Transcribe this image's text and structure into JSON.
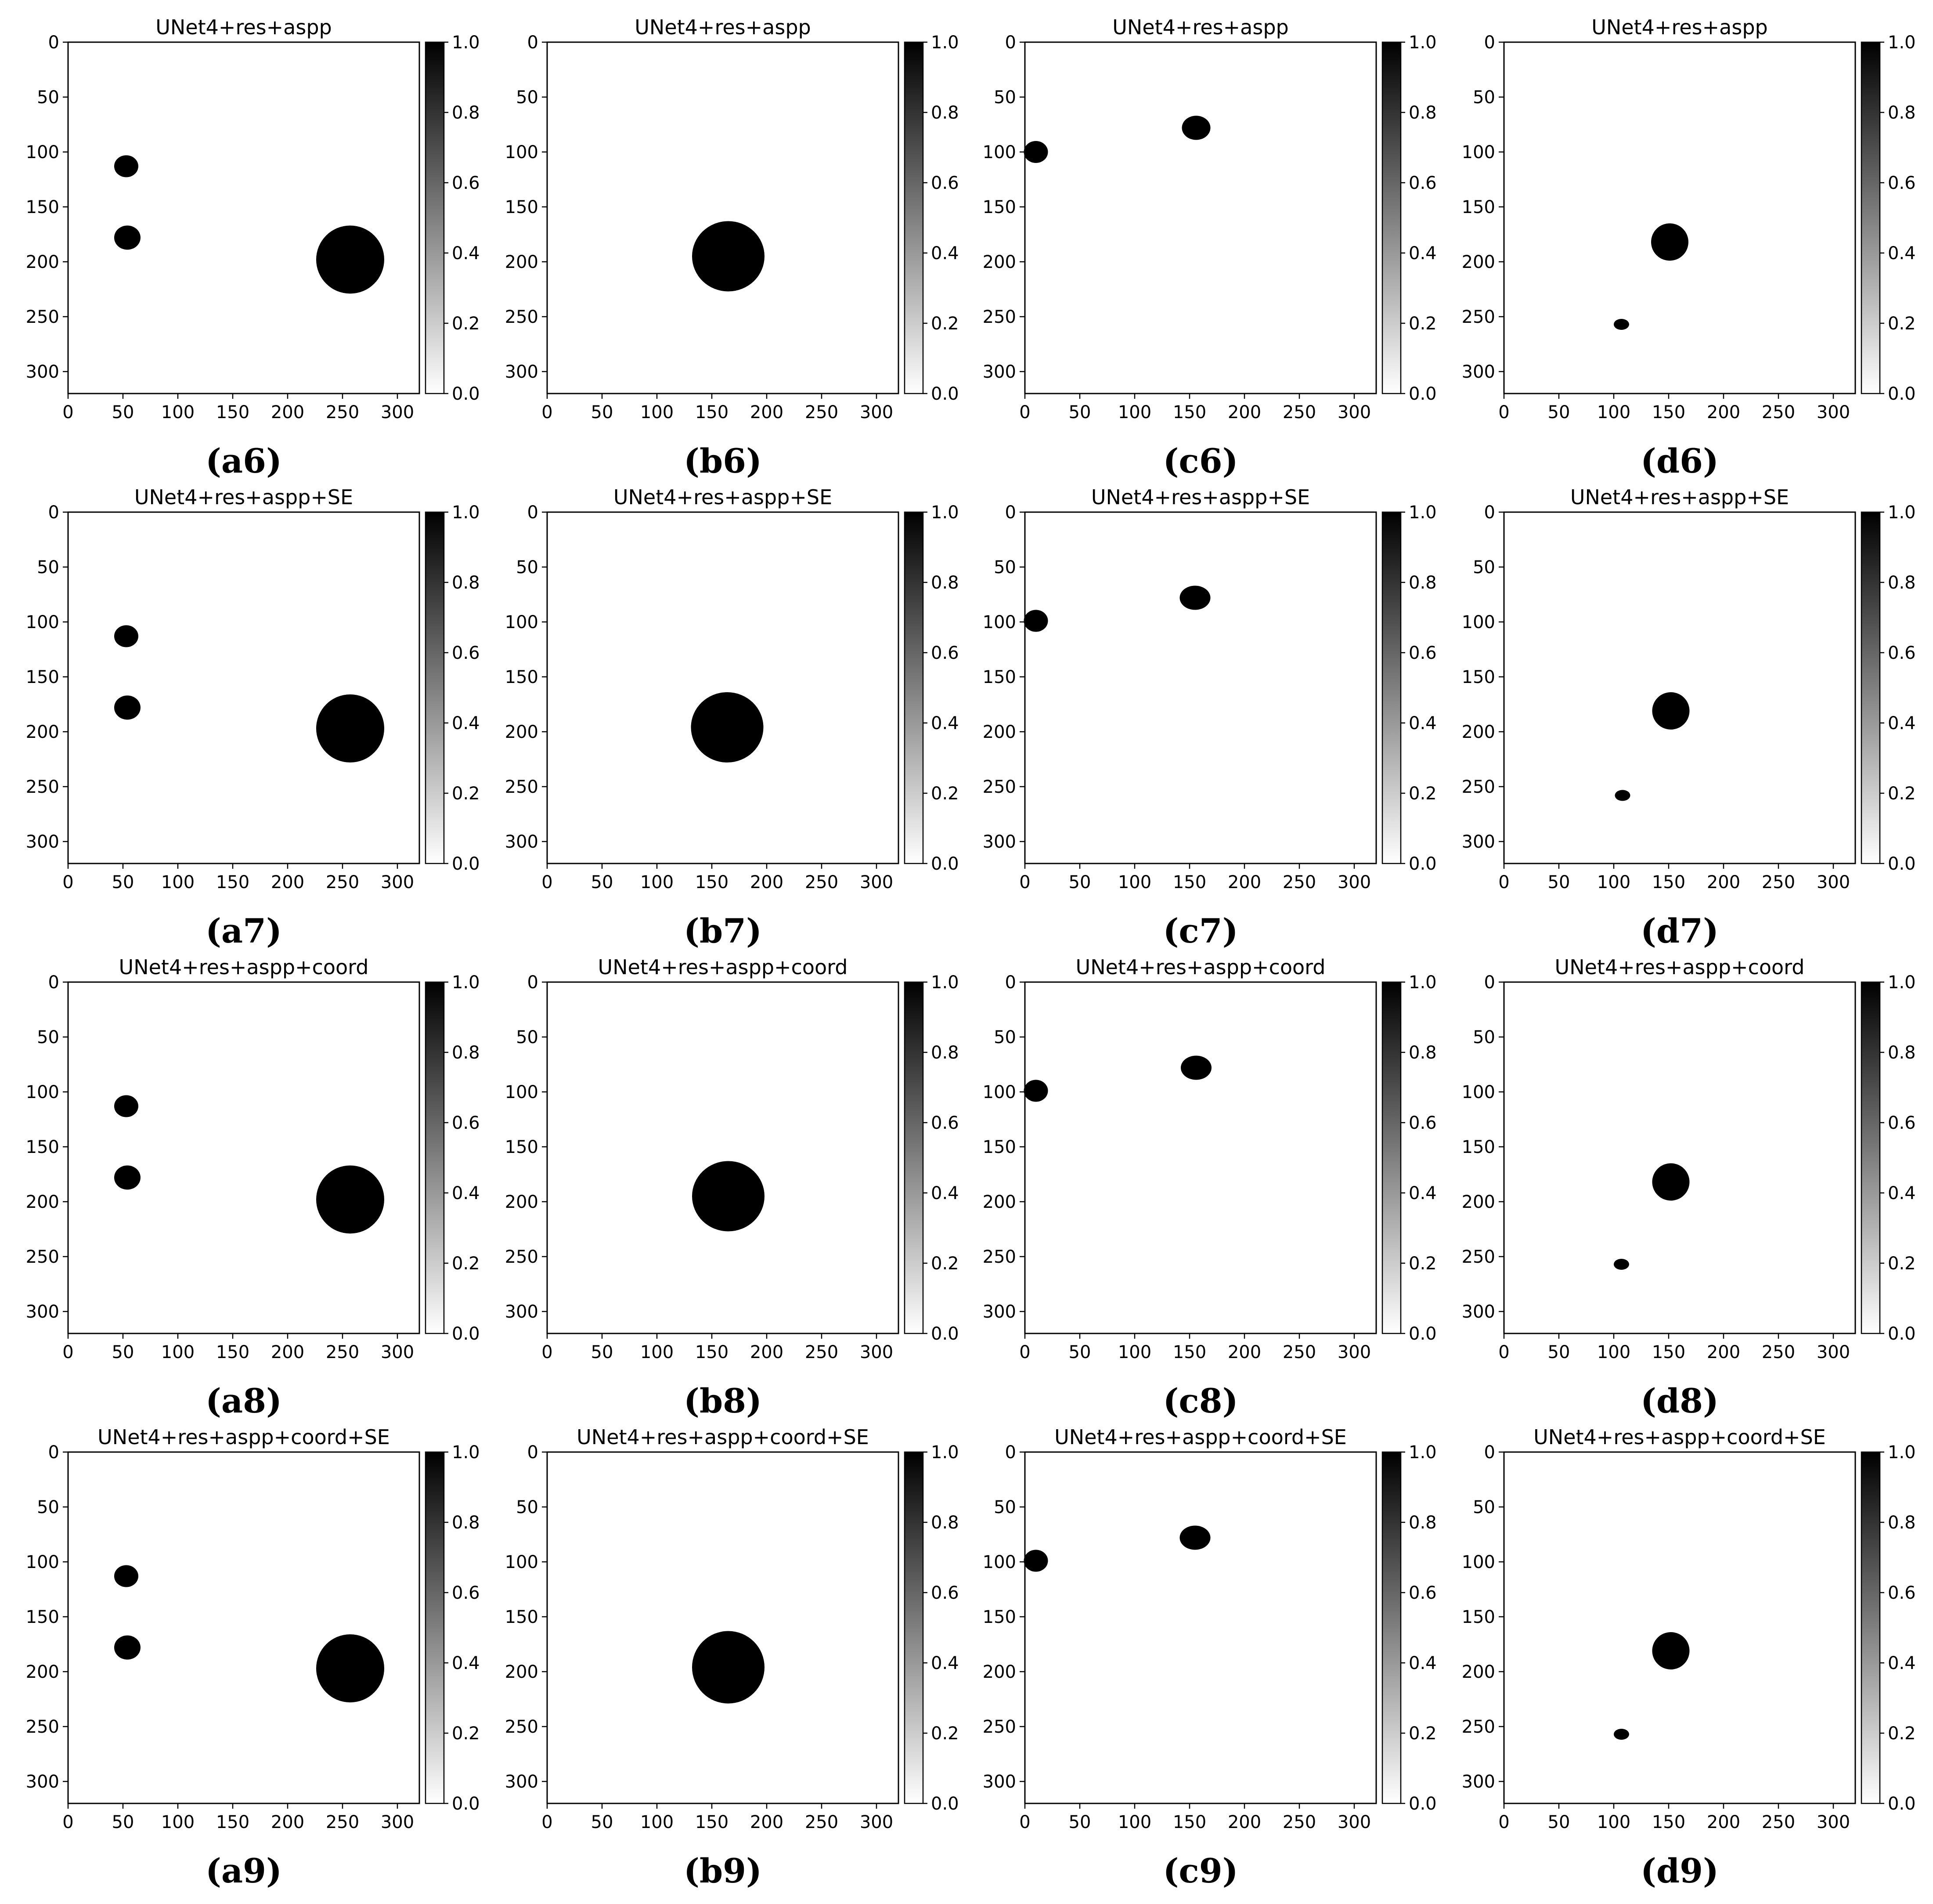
{
  "chart_data": [
    {
      "id": "a6",
      "type": "heatmap",
      "title": "UNet4+res+aspp",
      "label": "(a6)",
      "x_ticks": [
        0,
        50,
        100,
        150,
        200,
        250,
        300
      ],
      "y_ticks": [
        0,
        50,
        100,
        150,
        200,
        250,
        300
      ],
      "xlim": [
        0,
        320
      ],
      "ylim": [
        320,
        0
      ],
      "colorbar": {
        "ticks": [
          "0.0",
          "0.2",
          "0.4",
          "0.6",
          "0.8",
          "1.0"
        ],
        "range": [
          0,
          1
        ],
        "colormap": "gray_r"
      },
      "regions": [
        {
          "cx": 53,
          "cy": 113,
          "rx": 11,
          "ry": 10
        },
        {
          "cx": 54,
          "cy": 178,
          "rx": 12,
          "ry": 11
        },
        {
          "cx": 257,
          "cy": 198,
          "rx": 31,
          "ry": 31
        }
      ]
    },
    {
      "id": "b6",
      "type": "heatmap",
      "title": "UNet4+res+aspp",
      "label": "(b6)",
      "x_ticks": [
        0,
        50,
        100,
        150,
        200,
        250,
        300
      ],
      "y_ticks": [
        0,
        50,
        100,
        150,
        200,
        250,
        300
      ],
      "xlim": [
        0,
        320
      ],
      "ylim": [
        320,
        0
      ],
      "colorbar": {
        "ticks": [
          "0.0",
          "0.2",
          "0.4",
          "0.6",
          "0.8",
          "1.0"
        ],
        "range": [
          0,
          1
        ],
        "colormap": "gray_r"
      },
      "regions": [
        {
          "cx": 165,
          "cy": 195,
          "rx": 33,
          "ry": 32
        }
      ]
    },
    {
      "id": "c6",
      "type": "heatmap",
      "title": "UNet4+res+aspp",
      "label": "(c6)",
      "x_ticks": [
        0,
        50,
        100,
        150,
        200,
        250,
        300
      ],
      "y_ticks": [
        0,
        50,
        100,
        150,
        200,
        250,
        300
      ],
      "xlim": [
        0,
        320
      ],
      "ylim": [
        320,
        0
      ],
      "colorbar": {
        "ticks": [
          "0.0",
          "0.2",
          "0.4",
          "0.6",
          "0.8",
          "1.0"
        ],
        "range": [
          0,
          1
        ],
        "colormap": "gray_r"
      },
      "regions": [
        {
          "cx": 10,
          "cy": 100,
          "rx": 11,
          "ry": 10
        },
        {
          "cx": 156,
          "cy": 78,
          "rx": 13,
          "ry": 11
        }
      ]
    },
    {
      "id": "d6",
      "type": "heatmap",
      "title": "UNet4+res+aspp",
      "label": "(d6)",
      "x_ticks": [
        0,
        50,
        100,
        150,
        200,
        250,
        300
      ],
      "y_ticks": [
        0,
        50,
        100,
        150,
        200,
        250,
        300
      ],
      "xlim": [
        0,
        320
      ],
      "ylim": [
        320,
        0
      ],
      "colorbar": {
        "ticks": [
          "0.0",
          "0.2",
          "0.4",
          "0.6",
          "0.8",
          "1.0"
        ],
        "range": [
          0,
          1
        ],
        "colormap": "gray_r"
      },
      "regions": [
        {
          "cx": 151,
          "cy": 182,
          "rx": 17,
          "ry": 17
        },
        {
          "cx": 107,
          "cy": 257,
          "rx": 7,
          "ry": 5
        }
      ]
    },
    {
      "id": "a7",
      "type": "heatmap",
      "title": "UNet4+res+aspp+SE",
      "label": "(a7)",
      "x_ticks": [
        0,
        50,
        100,
        150,
        200,
        250,
        300
      ],
      "y_ticks": [
        0,
        50,
        100,
        150,
        200,
        250,
        300
      ],
      "xlim": [
        0,
        320
      ],
      "ylim": [
        320,
        0
      ],
      "colorbar": {
        "ticks": [
          "0.0",
          "0.2",
          "0.4",
          "0.6",
          "0.8",
          "1.0"
        ],
        "range": [
          0,
          1
        ],
        "colormap": "gray_r"
      },
      "regions": [
        {
          "cx": 53,
          "cy": 113,
          "rx": 11,
          "ry": 10
        },
        {
          "cx": 54,
          "cy": 178,
          "rx": 12,
          "ry": 11
        },
        {
          "cx": 257,
          "cy": 197,
          "rx": 31,
          "ry": 31
        }
      ]
    },
    {
      "id": "b7",
      "type": "heatmap",
      "title": "UNet4+res+aspp+SE",
      "label": "(b7)",
      "x_ticks": [
        0,
        50,
        100,
        150,
        200,
        250,
        300
      ],
      "y_ticks": [
        0,
        50,
        100,
        150,
        200,
        250,
        300
      ],
      "xlim": [
        0,
        320
      ],
      "ylim": [
        320,
        0
      ],
      "colorbar": {
        "ticks": [
          "0.0",
          "0.2",
          "0.4",
          "0.6",
          "0.8",
          "1.0"
        ],
        "range": [
          0,
          1
        ],
        "colormap": "gray_r"
      },
      "regions": [
        {
          "cx": 164,
          "cy": 196,
          "rx": 33,
          "ry": 32
        }
      ]
    },
    {
      "id": "c7",
      "type": "heatmap",
      "title": "UNet4+res+aspp+SE",
      "label": "(c7)",
      "x_ticks": [
        0,
        50,
        100,
        150,
        200,
        250,
        300
      ],
      "y_ticks": [
        0,
        50,
        100,
        150,
        200,
        250,
        300
      ],
      "xlim": [
        0,
        320
      ],
      "ylim": [
        320,
        0
      ],
      "colorbar": {
        "ticks": [
          "0.0",
          "0.2",
          "0.4",
          "0.6",
          "0.8",
          "1.0"
        ],
        "range": [
          0,
          1
        ],
        "colormap": "gray_r"
      },
      "regions": [
        {
          "cx": 10,
          "cy": 99,
          "rx": 11,
          "ry": 10
        },
        {
          "cx": 155,
          "cy": 78,
          "rx": 14,
          "ry": 11
        }
      ]
    },
    {
      "id": "d7",
      "type": "heatmap",
      "title": "UNet4+res+aspp+SE",
      "label": "(d7)",
      "x_ticks": [
        0,
        50,
        100,
        150,
        200,
        250,
        300
      ],
      "y_ticks": [
        0,
        50,
        100,
        150,
        200,
        250,
        300
      ],
      "xlim": [
        0,
        320
      ],
      "ylim": [
        320,
        0
      ],
      "colorbar": {
        "ticks": [
          "0.0",
          "0.2",
          "0.4",
          "0.6",
          "0.8",
          "1.0"
        ],
        "range": [
          0,
          1
        ],
        "colormap": "gray_r"
      },
      "regions": [
        {
          "cx": 152,
          "cy": 181,
          "rx": 17,
          "ry": 17
        },
        {
          "cx": 108,
          "cy": 258,
          "rx": 7,
          "ry": 5
        }
      ]
    },
    {
      "id": "a8",
      "type": "heatmap",
      "title": "UNet4+res+aspp+coord",
      "label": "(a8)",
      "x_ticks": [
        0,
        50,
        100,
        150,
        200,
        250,
        300
      ],
      "y_ticks": [
        0,
        50,
        100,
        150,
        200,
        250,
        300
      ],
      "xlim": [
        0,
        320
      ],
      "ylim": [
        320,
        0
      ],
      "colorbar": {
        "ticks": [
          "0.0",
          "0.2",
          "0.4",
          "0.6",
          "0.8",
          "1.0"
        ],
        "range": [
          0,
          1
        ],
        "colormap": "gray_r"
      },
      "regions": [
        {
          "cx": 53,
          "cy": 113,
          "rx": 11,
          "ry": 10
        },
        {
          "cx": 54,
          "cy": 178,
          "rx": 12,
          "ry": 11
        },
        {
          "cx": 257,
          "cy": 198,
          "rx": 31,
          "ry": 31
        }
      ]
    },
    {
      "id": "b8",
      "type": "heatmap",
      "title": "UNet4+res+aspp+coord",
      "label": "(b8)",
      "x_ticks": [
        0,
        50,
        100,
        150,
        200,
        250,
        300
      ],
      "y_ticks": [
        0,
        50,
        100,
        150,
        200,
        250,
        300
      ],
      "xlim": [
        0,
        320
      ],
      "ylim": [
        320,
        0
      ],
      "colorbar": {
        "ticks": [
          "0.0",
          "0.2",
          "0.4",
          "0.6",
          "0.8",
          "1.0"
        ],
        "range": [
          0,
          1
        ],
        "colormap": "gray_r"
      },
      "regions": [
        {
          "cx": 165,
          "cy": 195,
          "rx": 33,
          "ry": 32
        }
      ]
    },
    {
      "id": "c8",
      "type": "heatmap",
      "title": "UNet4+res+aspp+coord",
      "label": "(c8)",
      "x_ticks": [
        0,
        50,
        100,
        150,
        200,
        250,
        300
      ],
      "y_ticks": [
        0,
        50,
        100,
        150,
        200,
        250,
        300
      ],
      "xlim": [
        0,
        320
      ],
      "ylim": [
        320,
        0
      ],
      "colorbar": {
        "ticks": [
          "0.0",
          "0.2",
          "0.4",
          "0.6",
          "0.8",
          "1.0"
        ],
        "range": [
          0,
          1
        ],
        "colormap": "gray_r"
      },
      "regions": [
        {
          "cx": 10,
          "cy": 99,
          "rx": 11,
          "ry": 10
        },
        {
          "cx": 156,
          "cy": 78,
          "rx": 14,
          "ry": 11
        }
      ]
    },
    {
      "id": "d8",
      "type": "heatmap",
      "title": "UNet4+res+aspp+coord",
      "label": "(d8)",
      "x_ticks": [
        0,
        50,
        100,
        150,
        200,
        250,
        300
      ],
      "y_ticks": [
        0,
        50,
        100,
        150,
        200,
        250,
        300
      ],
      "xlim": [
        0,
        320
      ],
      "ylim": [
        320,
        0
      ],
      "colorbar": {
        "ticks": [
          "0.0",
          "0.2",
          "0.4",
          "0.6",
          "0.8",
          "1.0"
        ],
        "range": [
          0,
          1
        ],
        "colormap": "gray_r"
      },
      "regions": [
        {
          "cx": 152,
          "cy": 182,
          "rx": 17,
          "ry": 17
        },
        {
          "cx": 107,
          "cy": 257,
          "rx": 7,
          "ry": 5
        }
      ]
    },
    {
      "id": "a9",
      "type": "heatmap",
      "title": "UNet4+res+aspp+coord+SE",
      "label": "(a9)",
      "x_ticks": [
        0,
        50,
        100,
        150,
        200,
        250,
        300
      ],
      "y_ticks": [
        0,
        50,
        100,
        150,
        200,
        250,
        300
      ],
      "xlim": [
        0,
        320
      ],
      "ylim": [
        320,
        0
      ],
      "colorbar": {
        "ticks": [
          "0.0",
          "0.2",
          "0.4",
          "0.6",
          "0.8",
          "1.0"
        ],
        "range": [
          0,
          1
        ],
        "colormap": "gray_r"
      },
      "regions": [
        {
          "cx": 53,
          "cy": 113,
          "rx": 11,
          "ry": 10
        },
        {
          "cx": 54,
          "cy": 178,
          "rx": 12,
          "ry": 11
        },
        {
          "cx": 257,
          "cy": 197,
          "rx": 31,
          "ry": 31
        }
      ]
    },
    {
      "id": "b9",
      "type": "heatmap",
      "title": "UNet4+res+aspp+coord+SE",
      "label": "(b9)",
      "x_ticks": [
        0,
        50,
        100,
        150,
        200,
        250,
        300
      ],
      "y_ticks": [
        0,
        50,
        100,
        150,
        200,
        250,
        300
      ],
      "xlim": [
        0,
        320
      ],
      "ylim": [
        320,
        0
      ],
      "colorbar": {
        "ticks": [
          "0.0",
          "0.2",
          "0.4",
          "0.6",
          "0.8",
          "1.0"
        ],
        "range": [
          0,
          1
        ],
        "colormap": "gray_r"
      },
      "regions": [
        {
          "cx": 165,
          "cy": 196,
          "rx": 33,
          "ry": 33
        }
      ]
    },
    {
      "id": "c9",
      "type": "heatmap",
      "title": "UNet4+res+aspp+coord+SE",
      "label": "(c9)",
      "x_ticks": [
        0,
        50,
        100,
        150,
        200,
        250,
        300
      ],
      "y_ticks": [
        0,
        50,
        100,
        150,
        200,
        250,
        300
      ],
      "xlim": [
        0,
        320
      ],
      "ylim": [
        320,
        0
      ],
      "colorbar": {
        "ticks": [
          "0.0",
          "0.2",
          "0.4",
          "0.6",
          "0.8",
          "1.0"
        ],
        "range": [
          0,
          1
        ],
        "colormap": "gray_r"
      },
      "regions": [
        {
          "cx": 10,
          "cy": 99,
          "rx": 11,
          "ry": 10
        },
        {
          "cx": 155,
          "cy": 78,
          "rx": 14,
          "ry": 11
        }
      ]
    },
    {
      "id": "d9",
      "type": "heatmap",
      "title": "UNet4+res+aspp+coord+SE",
      "label": "(d9)",
      "x_ticks": [
        0,
        50,
        100,
        150,
        200,
        250,
        300
      ],
      "y_ticks": [
        0,
        50,
        100,
        150,
        200,
        250,
        300
      ],
      "xlim": [
        0,
        320
      ],
      "ylim": [
        320,
        0
      ],
      "colorbar": {
        "ticks": [
          "0.0",
          "0.2",
          "0.4",
          "0.6",
          "0.8",
          "1.0"
        ],
        "range": [
          0,
          1
        ],
        "colormap": "gray_r"
      },
      "regions": [
        {
          "cx": 152,
          "cy": 181,
          "rx": 17,
          "ry": 17
        },
        {
          "cx": 107,
          "cy": 257,
          "rx": 7,
          "ry": 5
        }
      ]
    }
  ]
}
